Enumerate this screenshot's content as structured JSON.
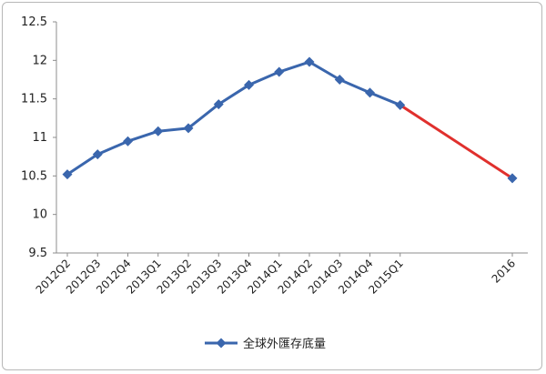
{
  "chart_data": {
    "type": "line",
    "title": "",
    "xlabel": "",
    "ylabel": "",
    "ylim": [
      9.5,
      12.5
    ],
    "yticks": [
      9.5,
      10,
      10.5,
      11,
      11.5,
      12,
      12.5
    ],
    "grid": false,
    "legend_position": "bottom",
    "categories": [
      "2012Q2",
      "2012Q3",
      "2012Q4",
      "2013Q1",
      "2013Q2",
      "2013Q3",
      "2013Q4",
      "2014Q1",
      "2014Q2",
      "2014Q3",
      "2014Q4",
      "2015Q1",
      "2016"
    ],
    "series": [
      {
        "name": "全球外匯存底量",
        "color": "#3a66ad",
        "marker": "diamond",
        "values": [
          10.52,
          10.78,
          10.95,
          11.08,
          11.12,
          11.43,
          11.68,
          11.85,
          11.98,
          11.75,
          11.58,
          11.42,
          null
        ]
      }
    ],
    "projection": {
      "color": "#e0302d",
      "from_category": "2015Q1",
      "to_category": "2016",
      "from_value": 11.42,
      "to_value": 10.47
    }
  }
}
